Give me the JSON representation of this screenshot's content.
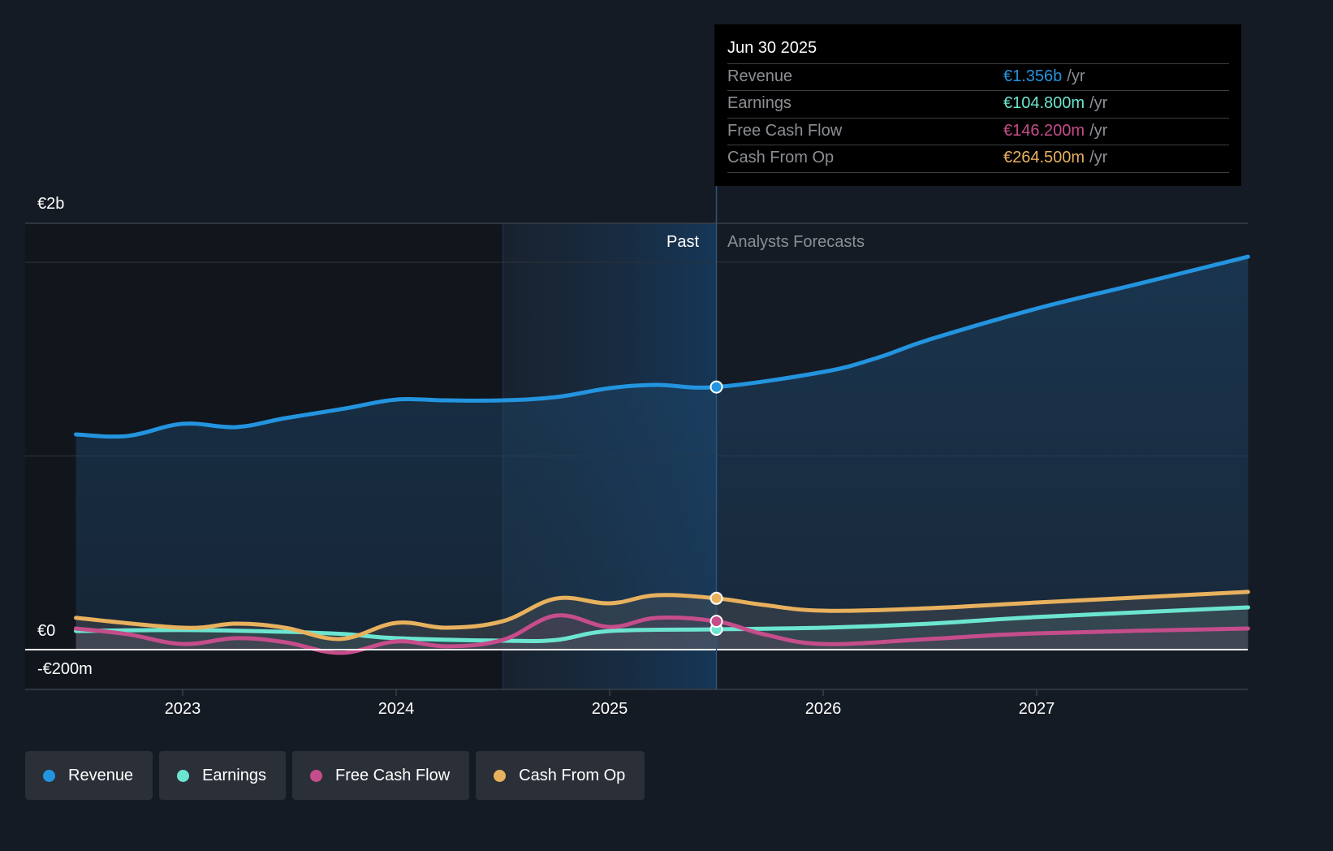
{
  "tooltip": {
    "date": "Jun 30 2025",
    "rows": [
      {
        "label": "Revenue",
        "value": "€1.356b",
        "unit": "/yr",
        "color": "#2394df"
      },
      {
        "label": "Earnings",
        "value": "€104.800m",
        "unit": "/yr",
        "color": "#6ce5d0"
      },
      {
        "label": "Free Cash Flow",
        "value": "€146.200m",
        "unit": "/yr",
        "color": "#c54d8b"
      },
      {
        "label": "Cash From Op",
        "value": "€264.500m",
        "unit": "/yr",
        "color": "#e8b15e"
      }
    ]
  },
  "regions": {
    "past": "Past",
    "forecast": "Analysts Forecasts"
  },
  "legend": [
    {
      "label": "Revenue",
      "color": "#2394df",
      "icon": "circle-dot-icon"
    },
    {
      "label": "Earnings",
      "color": "#6ce5d0",
      "icon": "circle-dot-icon"
    },
    {
      "label": "Free Cash Flow",
      "color": "#c54d8b",
      "icon": "circle-dot-icon"
    },
    {
      "label": "Cash From Op",
      "color": "#e8b15e",
      "icon": "circle-dot-icon"
    }
  ],
  "chart_data": {
    "type": "line",
    "title": "",
    "xlabel": "",
    "ylabel": "",
    "currency": "EUR",
    "unit": "millions",
    "y_tick_labels": [
      {
        "value": 2000,
        "label": "€2b"
      },
      {
        "value": 0,
        "label": "€0"
      },
      {
        "value": -200,
        "label": "-€200m"
      }
    ],
    "ylim": [
      -200,
      2200
    ],
    "x_ticks": [
      2023,
      2024,
      2025,
      2026,
      2027
    ],
    "xlim": [
      2022.35,
      2028.0
    ],
    "past_highlight_start": 2024.5,
    "forecast_start": 2025.5,
    "hover_date": 2025.5,
    "grid": true,
    "legend_position": "bottom-left",
    "series": [
      {
        "name": "Revenue",
        "color": "#2394df",
        "x": [
          2022.5,
          2022.74,
          2023.0,
          2023.25,
          2023.48,
          2023.76,
          2024.0,
          2024.24,
          2024.5,
          2024.75,
          2025.0,
          2025.22,
          2025.5,
          2026.0,
          2026.26,
          2026.5,
          2027.0,
          2027.47,
          2027.99
        ],
        "values": [
          1111,
          1103,
          1166,
          1149,
          1195,
          1245,
          1291,
          1287,
          1287,
          1304,
          1350,
          1367,
          1356,
          1434,
          1509,
          1602,
          1761,
          1887,
          2029
        ]
      },
      {
        "name": "Earnings",
        "color": "#6ce5d0",
        "x": [
          2022.5,
          2023.0,
          2023.48,
          2023.76,
          2024.0,
          2024.5,
          2024.75,
          2025.0,
          2025.5,
          2026.0,
          2026.5,
          2027.0,
          2027.99
        ],
        "values": [
          96,
          101,
          92,
          80,
          59,
          46,
          50,
          96,
          105,
          113,
          134,
          168,
          218
        ]
      },
      {
        "name": "Free Cash Flow",
        "color": "#c54d8b",
        "x": [
          2022.5,
          2022.74,
          2023.0,
          2023.25,
          2023.48,
          2023.74,
          2024.0,
          2024.24,
          2024.5,
          2024.75,
          2025.0,
          2025.22,
          2025.5,
          2025.72,
          2026.0,
          2026.5,
          2027.0,
          2027.99
        ],
        "values": [
          109,
          80,
          29,
          59,
          38,
          -17,
          42,
          17,
          50,
          176,
          117,
          164,
          146,
          80,
          29,
          55,
          84,
          109
        ]
      },
      {
        "name": "Cash From Op",
        "color": "#e8b15e",
        "x": [
          2022.5,
          2023.0,
          2023.25,
          2023.48,
          2023.74,
          2024.0,
          2024.24,
          2024.5,
          2024.75,
          2025.0,
          2025.22,
          2025.5,
          2025.72,
          2026.0,
          2026.5,
          2027.0,
          2027.99
        ],
        "values": [
          164,
          113,
          134,
          113,
          55,
          138,
          113,
          147,
          264,
          239,
          281,
          265,
          231,
          201,
          214,
          243,
          298
        ]
      }
    ]
  }
}
